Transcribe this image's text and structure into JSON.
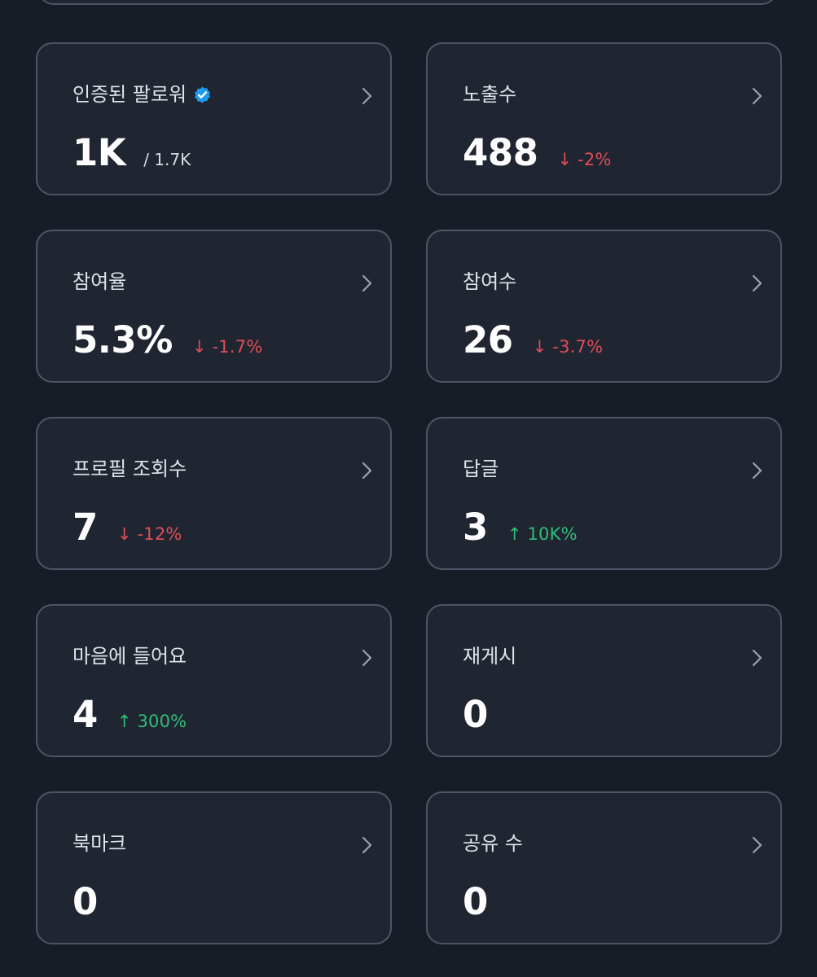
{
  "colors": {
    "background": "#171d27",
    "card_background": "#202631",
    "card_border": "#4b5665",
    "negative": "#df4d59",
    "positive": "#2ebd79",
    "verified": "#1d9bf0"
  },
  "cards": [
    {
      "label": "인증된 팔로워",
      "value": "1K",
      "suffix": "/ 1.7K",
      "verified_icon": "verified-badge-icon",
      "chevron_icon": "chevron-right-icon"
    },
    {
      "label": "노출수",
      "value": "488",
      "change": "↓ -2%",
      "direction": "down",
      "chevron_icon": "chevron-right-icon"
    },
    {
      "label": "참여율",
      "value": "5.3%",
      "change": "↓ -1.7%",
      "direction": "down",
      "chevron_icon": "chevron-right-icon"
    },
    {
      "label": "참여수",
      "value": "26",
      "change": "↓ -3.7%",
      "direction": "down",
      "chevron_icon": "chevron-right-icon"
    },
    {
      "label": "프로필 조회수",
      "value": "7",
      "change": "↓ -12%",
      "direction": "down",
      "chevron_icon": "chevron-right-icon"
    },
    {
      "label": "답글",
      "value": "3",
      "change": "↑ 10K%",
      "direction": "up",
      "chevron_icon": "chevron-right-icon"
    },
    {
      "label": "마음에 들어요",
      "value": "4",
      "change": "↑ 300%",
      "direction": "up",
      "chevron_icon": "chevron-right-icon"
    },
    {
      "label": "재게시",
      "value": "0",
      "chevron_icon": "chevron-right-icon"
    },
    {
      "label": "북마크",
      "value": "0",
      "chevron_icon": "chevron-right-icon"
    },
    {
      "label": "공유 수",
      "value": "0",
      "chevron_icon": "chevron-right-icon"
    }
  ]
}
